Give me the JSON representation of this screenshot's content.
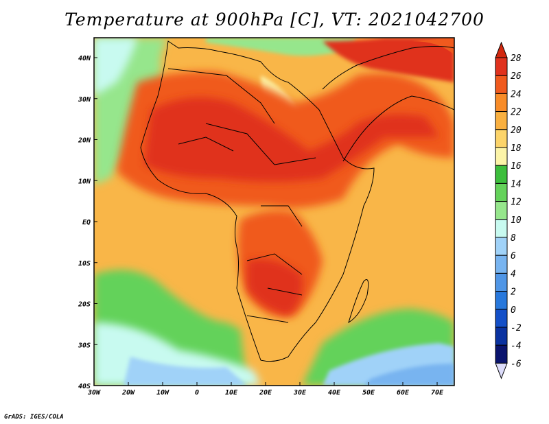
{
  "title": "Temperature at 900hPa [C], VT: 2021042700",
  "credit": "GrADS: IGES/COLA",
  "map": {
    "lon_ticks": [
      "30W",
      "20W",
      "10W",
      "0",
      "10E",
      "20E",
      "30E",
      "40E",
      "50E",
      "60E",
      "70E"
    ],
    "lat_ticks": [
      "40N",
      "30N",
      "20N",
      "10N",
      "EQ",
      "10S",
      "20S",
      "30S",
      "40S"
    ]
  },
  "colorbar": {
    "levels": [
      "28",
      "26",
      "24",
      "22",
      "20",
      "18",
      "16",
      "14",
      "12",
      "10",
      "8",
      "6",
      "4",
      "2",
      "0",
      "-2",
      "-4",
      "-6"
    ],
    "colors": [
      "#e0321e",
      "#f05a1e",
      "#f88c28",
      "#f9b040",
      "#fcd46a",
      "#fcf4a8",
      "#3cbe3c",
      "#64d25a",
      "#96e68c",
      "#c8faf0",
      "#a0d2f8",
      "#78b4f0",
      "#5096e6",
      "#2878dc",
      "#1450c8",
      "#0a32a0",
      "#0a146e",
      "#dcdcfa"
    ],
    "top_color": "#d2280f",
    "bottom_color": "#dcdcfa"
  }
}
